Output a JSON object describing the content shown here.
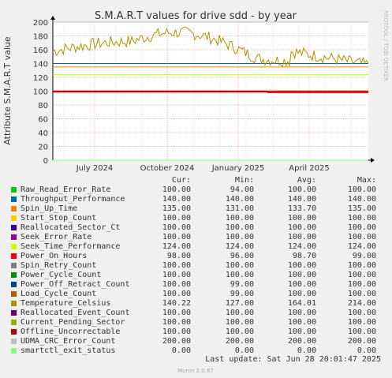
{
  "chart_data": {
    "type": "line",
    "title": "S.M.A.R.T values for drive sdd - by year",
    "ylabel": "Attribute S.M.A.R.T value",
    "ylim": [
      0,
      200
    ],
    "yticks": [
      0,
      20,
      40,
      60,
      80,
      100,
      120,
      140,
      160,
      180,
      200
    ],
    "xticks": [
      "July 2024",
      "October 2024",
      "January 2025",
      "April 2025"
    ],
    "series": [
      {
        "name": "Raw_Read_Error_Rate",
        "color": "#00cc00",
        "cur": "100.00",
        "min": "94.00",
        "avg": "100.00",
        "max": "100.00"
      },
      {
        "name": "Throughput_Performance",
        "color": "#0066b3",
        "cur": "140.00",
        "min": "140.00",
        "avg": "140.00",
        "max": "140.00"
      },
      {
        "name": "Spin_Up_Time",
        "color": "#ff8000",
        "cur": "135.00",
        "min": "131.00",
        "avg": "133.70",
        "max": "135.00"
      },
      {
        "name": "Start_Stop_Count",
        "color": "#ffcc00",
        "cur": "100.00",
        "min": "100.00",
        "avg": "100.00",
        "max": "100.00"
      },
      {
        "name": "Reallocated_Sector_Ct",
        "color": "#330099",
        "cur": "100.00",
        "min": "100.00",
        "avg": "100.00",
        "max": "100.00"
      },
      {
        "name": "Seek_Error_Rate",
        "color": "#990099",
        "cur": "100.00",
        "min": "100.00",
        "avg": "100.00",
        "max": "100.00"
      },
      {
        "name": "Seek_Time_Performance",
        "color": "#ccff00",
        "cur": "124.00",
        "min": "124.00",
        "avg": "124.00",
        "max": "124.00"
      },
      {
        "name": "Power_On_Hours",
        "color": "#ff0000",
        "cur": "98.00",
        "min": "96.00",
        "avg": "98.70",
        "max": "99.00"
      },
      {
        "name": "Spin_Retry_Count",
        "color": "#808080",
        "cur": "100.00",
        "min": "100.00",
        "avg": "100.00",
        "max": "100.00"
      },
      {
        "name": "Power_Cycle_Count",
        "color": "#008f00",
        "cur": "100.00",
        "min": "100.00",
        "avg": "100.00",
        "max": "100.00"
      },
      {
        "name": "Power_Off_Retract_Count",
        "color": "#00487d",
        "cur": "100.00",
        "min": "99.00",
        "avg": "100.00",
        "max": "100.00"
      },
      {
        "name": "Load_Cycle_Count",
        "color": "#b35a00",
        "cur": "100.00",
        "min": "99.00",
        "avg": "100.00",
        "max": "100.00"
      },
      {
        "name": "Temperature_Celsius",
        "color": "#b38f00",
        "cur": "140.22",
        "min": "127.00",
        "avg": "164.01",
        "max": "214.00"
      },
      {
        "name": "Reallocated_Event_Count",
        "color": "#6b006b",
        "cur": "100.00",
        "min": "100.00",
        "avg": "100.00",
        "max": "100.00"
      },
      {
        "name": "Current_Pending_Sector",
        "color": "#8fb300",
        "cur": "100.00",
        "min": "100.00",
        "avg": "100.00",
        "max": "100.00"
      },
      {
        "name": "Offline_Uncorrectable",
        "color": "#b30000",
        "cur": "100.00",
        "min": "100.00",
        "avg": "100.00",
        "max": "100.00"
      },
      {
        "name": "UDMA_CRC_Error_Count",
        "color": "#bebebe",
        "cur": "200.00",
        "min": "200.00",
        "avg": "200.00",
        "max": "200.00"
      },
      {
        "name": "smartctl_exit_status",
        "color": "#80ff80",
        "cur": "0.00",
        "min": "0.00",
        "avg": "0.00",
        "max": "0.00"
      }
    ]
  },
  "legend_headers": {
    "cur": "Cur:",
    "min": "Min:",
    "avg": "Avg:",
    "max": "Max:"
  },
  "last_update": "Last update: Sat Jun 28 20:01:47 2025",
  "side_text": "RRDTOOL / TOBI OETIKER",
  "footer": "Munin 2.0.67"
}
